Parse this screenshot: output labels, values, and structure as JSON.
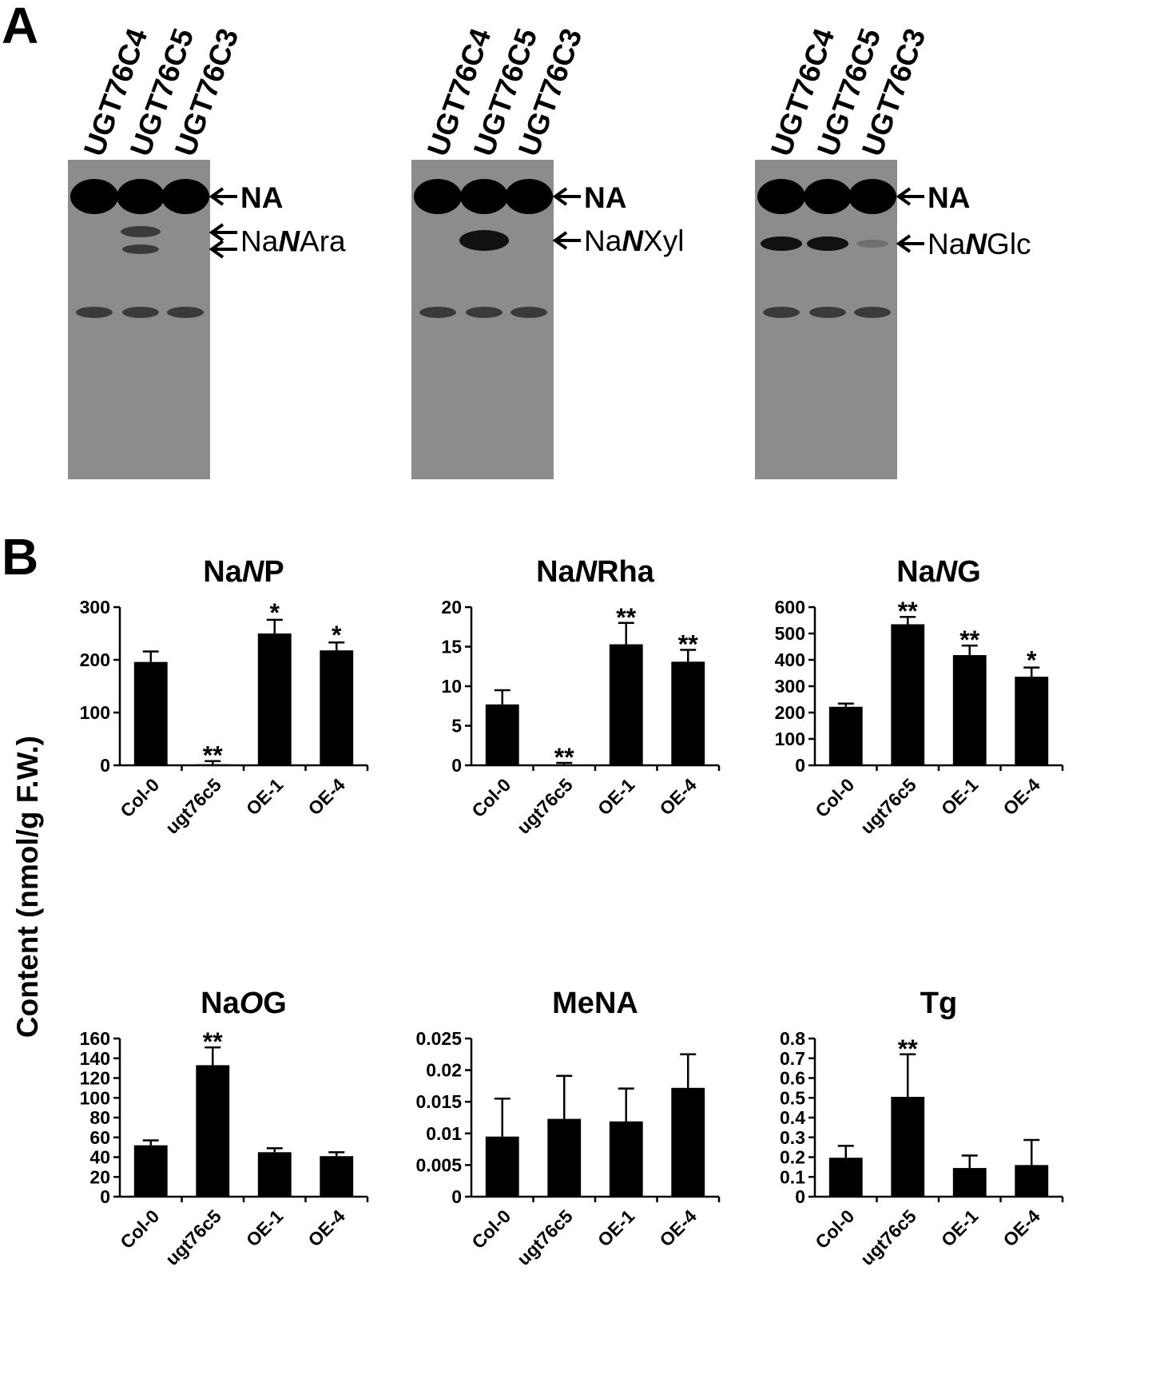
{
  "panel_labels": {
    "a": "A",
    "b": "B"
  },
  "panel_a": {
    "gels": [
      {
        "lanes": [
          "UGT76C4",
          "UGT76C5",
          "UGT76C3"
        ],
        "label_top": "NA",
        "label_product_prefix": "Na",
        "label_product_italic": "N",
        "label_product_suffix": "Ara"
      },
      {
        "lanes": [
          "UGT76C4",
          "UGT76C5",
          "UGT76C3"
        ],
        "label_top": "NA",
        "label_product_prefix": "Na",
        "label_product_italic": "N",
        "label_product_suffix": "Xyl"
      },
      {
        "lanes": [
          "UGT76C4",
          "UGT76C5",
          "UGT76C3"
        ],
        "label_top": "NA",
        "label_product_prefix": "Na",
        "label_product_italic": "N",
        "label_product_suffix": "Glc"
      }
    ]
  },
  "y_axis_title": "Content (nmol/g F.W.)",
  "chart_data": [
    {
      "type": "bar",
      "title_prefix": "Na",
      "title_italic": "N",
      "title_suffix": "P",
      "categories": [
        "Col-0",
        "ugt76c5",
        "OE-1",
        "OE-4"
      ],
      "values": [
        196,
        2,
        250,
        218
      ],
      "errors": [
        20,
        6,
        26,
        15
      ],
      "significance": [
        "",
        "**",
        "*",
        "*"
      ],
      "ylim": [
        0,
        300
      ],
      "yticks": [
        "0",
        "100",
        "200",
        "300"
      ]
    },
    {
      "type": "bar",
      "title_prefix": "Na",
      "title_italic": "N",
      "title_suffix": "Rha",
      "categories": [
        "Col-0",
        "ugt76c5",
        "OE-1",
        "OE-4"
      ],
      "values": [
        7.7,
        0.1,
        15.3,
        13.1
      ],
      "errors": [
        1.8,
        0.2,
        2.7,
        1.5
      ],
      "significance": [
        "",
        "**",
        "**",
        "**"
      ],
      "ylim": [
        0,
        20
      ],
      "yticks": [
        "0",
        "5",
        "10",
        "15",
        "20"
      ]
    },
    {
      "type": "bar",
      "title_prefix": "Na",
      "title_italic": "N",
      "title_suffix": "G",
      "categories": [
        "Col-0",
        "ugt76c5",
        "OE-1",
        "OE-4"
      ],
      "values": [
        222,
        535,
        418,
        336
      ],
      "errors": [
        12,
        28,
        36,
        35
      ],
      "significance": [
        "",
        "**",
        "**",
        "*"
      ],
      "ylim": [
        0,
        600
      ],
      "yticks": [
        "0",
        "100",
        "200",
        "300",
        "400",
        "500",
        "600"
      ]
    },
    {
      "type": "bar",
      "title_prefix": "Na",
      "title_italic": "O",
      "title_suffix": "G",
      "categories": [
        "Col-0",
        "ugt76c5",
        "OE-1",
        "OE-4"
      ],
      "values": [
        52,
        133,
        45,
        41
      ],
      "errors": [
        5,
        18,
        4,
        4
      ],
      "significance": [
        "",
        "**",
        "",
        ""
      ],
      "ylim": [
        0,
        160
      ],
      "yticks": [
        "0",
        "20",
        "40",
        "60",
        "80",
        "100",
        "120",
        "140",
        "160"
      ]
    },
    {
      "type": "bar",
      "title_prefix": "MeNA",
      "title_italic": "",
      "title_suffix": "",
      "categories": [
        "Col-0",
        "ugt76c5",
        "OE-1",
        "OE-4"
      ],
      "values": [
        0.0095,
        0.0123,
        0.0119,
        0.0172
      ],
      "errors": [
        0.006,
        0.0068,
        0.0052,
        0.0053
      ],
      "significance": [
        "",
        "",
        "",
        ""
      ],
      "ylim": [
        0,
        0.025
      ],
      "yticks": [
        "0",
        "0.005",
        "0.01",
        "0.015",
        "0.02",
        "0.025"
      ]
    },
    {
      "type": "bar",
      "title_prefix": "Tg",
      "title_italic": "",
      "title_suffix": "",
      "categories": [
        "Col-0",
        "ugt76c5",
        "OE-1",
        "OE-4"
      ],
      "values": [
        0.197,
        0.505,
        0.145,
        0.16
      ],
      "errors": [
        0.06,
        0.215,
        0.063,
        0.127
      ],
      "significance": [
        "",
        "**",
        "",
        ""
      ],
      "ylim": [
        0,
        0.8
      ],
      "yticks": [
        "0",
        "0.1",
        "0.2",
        "0.3",
        "0.4",
        "0.5",
        "0.6",
        "0.7",
        "0.8"
      ]
    }
  ]
}
